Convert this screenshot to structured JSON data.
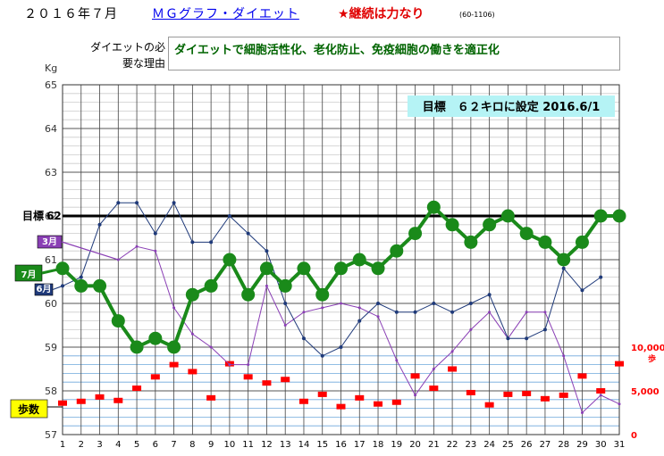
{
  "header": {
    "title": "２０１６年７月",
    "subtitle": "ＭＧグラフ・ダイエット",
    "slogan": "★継続は力なり",
    "code": "(60-1106)"
  },
  "reason": {
    "label": "ダイエットの必要な理由",
    "text": "ダイエットで細胞活性化、老化防止、免疫細胞の働きを適正化"
  },
  "chart_data": {
    "type": "line",
    "ylabel": "Kg",
    "ylim": [
      57,
      65
    ],
    "y_ticks": [
      57,
      58,
      59,
      60,
      61,
      62,
      63,
      64,
      65
    ],
    "x": [
      1,
      2,
      3,
      4,
      5,
      6,
      7,
      8,
      9,
      10,
      11,
      12,
      13,
      14,
      15,
      16,
      17,
      18,
      19,
      20,
      21,
      22,
      23,
      24,
      25,
      26,
      27,
      28,
      29,
      30,
      31
    ],
    "target": {
      "label": "目標",
      "value": 62,
      "note": "目標　６２キロに設定 2016.6/1"
    },
    "series": [
      {
        "name": "7月",
        "color": "#1a8a1a",
        "values": [
          60.8,
          60.4,
          60.4,
          59.6,
          59.0,
          59.2,
          59.0,
          60.2,
          60.4,
          61.0,
          60.2,
          60.8,
          60.4,
          60.8,
          60.2,
          60.8,
          61.0,
          60.8,
          61.2,
          61.6,
          62.2,
          61.8,
          61.4,
          61.8,
          62.0,
          61.6,
          61.4,
          61.0,
          61.4,
          62.0,
          62.0
        ]
      },
      {
        "name": "6月",
        "color": "#1f3a7a",
        "values": [
          60.4,
          60.6,
          61.8,
          62.3,
          62.3,
          61.6,
          62.3,
          61.4,
          61.4,
          62.0,
          61.6,
          61.2,
          60.0,
          59.2,
          58.8,
          59.0,
          59.6,
          60.0,
          59.8,
          59.8,
          60.0,
          59.8,
          60.0,
          60.2,
          59.2,
          59.2,
          59.4,
          60.8,
          60.3,
          60.6,
          null
        ]
      },
      {
        "name": "3月",
        "color": "#8a3fb5",
        "values": [
          null,
          null,
          null,
          61.0,
          61.3,
          61.2,
          59.9,
          59.3,
          59.0,
          58.6,
          58.6,
          60.4,
          59.5,
          59.8,
          59.9,
          60.0,
          59.9,
          59.7,
          58.7,
          57.9,
          58.5,
          58.9,
          59.4,
          59.8,
          59.2,
          59.8,
          59.8,
          58.8,
          57.5,
          57.9,
          57.7
        ]
      }
    ],
    "steps": {
      "label": "歩数",
      "ylim": [
        0,
        10000
      ],
      "tick_labels": [
        "10,000",
        "5,000",
        "0"
      ],
      "unit": "歩",
      "color": "#ff0000",
      "values": [
        3600,
        3800,
        4300,
        3900,
        5300,
        6600,
        8000,
        7200,
        4200,
        8100,
        6600,
        5900,
        6300,
        3800,
        4600,
        3200,
        4200,
        3500,
        3700,
        6700,
        5300,
        7500,
        4800,
        3400,
        4600,
        4700,
        4100,
        4500,
        6700,
        5000,
        8100
      ]
    }
  }
}
